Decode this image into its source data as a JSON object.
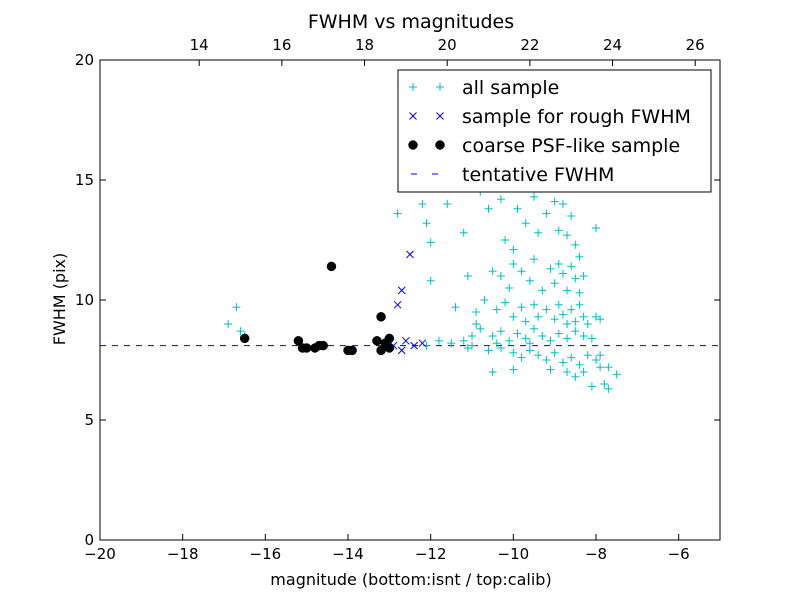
{
  "chart_data": {
    "type": "scatter",
    "title": "FWHM vs magnitudes",
    "xlabel": "magnitude (bottom:isnt / top:calib)",
    "ylabel": "FWHM (pix)",
    "xlim": [
      -20,
      -5
    ],
    "ylim": [
      0,
      20
    ],
    "x_ticks": [
      -20,
      -18,
      -16,
      -14,
      -12,
      -10,
      -8,
      -6
    ],
    "x_tick_labels": [
      "−20",
      "−18",
      "−16",
      "−14",
      "−12",
      "−10",
      "−8",
      "−6"
    ],
    "y_ticks": [
      0,
      5,
      10,
      15,
      20
    ],
    "y_tick_labels": [
      "0",
      "5",
      "10",
      "15",
      "20"
    ],
    "top_axis": {
      "offset": 31.6,
      "ticks": [
        14,
        16,
        18,
        20,
        22,
        24,
        26
      ],
      "tick_labels": [
        "14",
        "16",
        "18",
        "20",
        "22",
        "24",
        "26"
      ]
    },
    "grid": false,
    "legend": {
      "placement": "top-right",
      "entries": [
        {
          "label": "all sample",
          "marker": "+",
          "color": "#00bfbf"
        },
        {
          "label": "sample for rough FWHM",
          "marker": "x",
          "color": "#0000ff"
        },
        {
          "label": "coarse PSF-like sample",
          "marker": "o",
          "color": "#000000"
        },
        {
          "label": "tentative FWHM",
          "marker": "dash",
          "color": "#0000ff"
        }
      ]
    },
    "tentative_fwhm": 8.1,
    "series": [
      {
        "name": "all sample",
        "marker": "+",
        "color": "#00bfbf",
        "points": [
          [
            -16.9,
            9.0
          ],
          [
            -16.7,
            9.7
          ],
          [
            -16.6,
            8.7
          ],
          [
            -16.5,
            8.5
          ],
          [
            -12.8,
            13.6
          ],
          [
            -12.2,
            14.0
          ],
          [
            -12.0,
            12.4
          ],
          [
            -12.1,
            13.2
          ],
          [
            -12.0,
            10.8
          ],
          [
            -11.6,
            14.0
          ],
          [
            -11.2,
            12.8
          ],
          [
            -11.4,
            9.7
          ],
          [
            -11.1,
            11.0
          ],
          [
            -11.0,
            8.5
          ],
          [
            -10.9,
            9.5
          ],
          [
            -11.8,
            8.3
          ],
          [
            -12.1,
            8.1
          ],
          [
            -11.5,
            8.2
          ],
          [
            -11.2,
            8.3
          ],
          [
            -10.8,
            14.5
          ],
          [
            -10.6,
            13.8
          ],
          [
            -10.5,
            15.0
          ],
          [
            -10.4,
            16.4
          ],
          [
            -10.3,
            14.2
          ],
          [
            -10.2,
            12.5
          ],
          [
            -10.0,
            12.1
          ],
          [
            -9.9,
            13.8
          ],
          [
            -9.7,
            13.2
          ],
          [
            -9.5,
            14.3
          ],
          [
            -9.4,
            12.8
          ],
          [
            -9.3,
            15.4
          ],
          [
            -9.2,
            13.6
          ],
          [
            -9.0,
            14.1
          ],
          [
            -8.9,
            12.9
          ],
          [
            -8.8,
            14.0
          ],
          [
            -8.7,
            12.7
          ],
          [
            -8.6,
            13.5
          ],
          [
            -8.5,
            12.3
          ],
          [
            -8.4,
            11.8
          ],
          [
            -8.3,
            11.0
          ],
          [
            -8.0,
            13.0
          ],
          [
            -10.5,
            11.2
          ],
          [
            -10.3,
            11.0
          ],
          [
            -10.1,
            10.5
          ],
          [
            -10.0,
            11.5
          ],
          [
            -9.8,
            11.2
          ],
          [
            -9.6,
            10.8
          ],
          [
            -9.5,
            11.7
          ],
          [
            -9.3,
            10.4
          ],
          [
            -9.1,
            11.3
          ],
          [
            -9.0,
            10.7
          ],
          [
            -8.9,
            11.5
          ],
          [
            -8.8,
            11.1
          ],
          [
            -8.7,
            10.4
          ],
          [
            -8.6,
            11.4
          ],
          [
            -8.5,
            10.9
          ],
          [
            -8.4,
            10.3
          ],
          [
            -10.7,
            10.0
          ],
          [
            -10.4,
            9.6
          ],
          [
            -10.2,
            9.9
          ],
          [
            -10.0,
            9.3
          ],
          [
            -9.8,
            9.7
          ],
          [
            -9.7,
            9.1
          ],
          [
            -9.5,
            9.8
          ],
          [
            -9.4,
            9.3
          ],
          [
            -9.2,
            9.6
          ],
          [
            -9.0,
            9.2
          ],
          [
            -8.9,
            9.8
          ],
          [
            -8.8,
            9.4
          ],
          [
            -8.7,
            9.0
          ],
          [
            -8.6,
            9.6
          ],
          [
            -8.5,
            9.1
          ],
          [
            -8.4,
            9.8
          ],
          [
            -8.3,
            9.3
          ],
          [
            -8.2,
            9.0
          ],
          [
            -8.0,
            9.3
          ],
          [
            -7.9,
            9.2
          ],
          [
            -10.8,
            8.8
          ],
          [
            -10.5,
            8.5
          ],
          [
            -10.3,
            8.7
          ],
          [
            -10.1,
            8.3
          ],
          [
            -9.9,
            8.6
          ],
          [
            -9.7,
            8.4
          ],
          [
            -9.5,
            8.8
          ],
          [
            -9.3,
            8.5
          ],
          [
            -9.1,
            8.3
          ],
          [
            -8.9,
            8.6
          ],
          [
            -8.7,
            8.4
          ],
          [
            -8.5,
            8.7
          ],
          [
            -8.3,
            8.5
          ],
          [
            -8.1,
            8.4
          ],
          [
            -11.0,
            8.1
          ],
          [
            -10.6,
            7.9
          ],
          [
            -10.3,
            8.0
          ],
          [
            -10.0,
            7.8
          ],
          [
            -9.8,
            7.6
          ],
          [
            -9.6,
            7.9
          ],
          [
            -9.4,
            7.7
          ],
          [
            -9.2,
            7.5
          ],
          [
            -9.0,
            7.8
          ],
          [
            -8.8,
            7.4
          ],
          [
            -8.6,
            7.6
          ],
          [
            -8.4,
            7.3
          ],
          [
            -8.2,
            7.7
          ],
          [
            -8.0,
            7.5
          ],
          [
            -7.9,
            7.2
          ],
          [
            -7.8,
            6.5
          ],
          [
            -7.7,
            7.2
          ],
          [
            -7.5,
            6.9
          ],
          [
            -7.7,
            6.3
          ],
          [
            -8.1,
            6.4
          ],
          [
            -8.5,
            6.8
          ],
          [
            -8.7,
            7.0
          ],
          [
            -9.1,
            7.1
          ],
          [
            -10.0,
            7.1
          ],
          [
            -10.5,
            7.0
          ],
          [
            -8.3,
            7.0
          ],
          [
            -7.9,
            7.7
          ],
          [
            -9.6,
            8.2
          ],
          [
            -10.9,
            9.0
          ],
          [
            -11.1,
            8.0
          ],
          [
            -10.4,
            8.2
          ]
        ]
      },
      {
        "name": "sample for rough FWHM",
        "marker": "x",
        "color": "#0000ff",
        "points": [
          [
            -12.5,
            11.9
          ],
          [
            -12.7,
            10.4
          ],
          [
            -12.8,
            9.8
          ],
          [
            -12.2,
            8.2
          ],
          [
            -12.4,
            8.1
          ],
          [
            -12.6,
            8.3
          ],
          [
            -12.7,
            7.9
          ],
          [
            -12.9,
            8.1
          ],
          [
            -13.0,
            8.2
          ]
        ]
      },
      {
        "name": "coarse PSF-like sample",
        "marker": "o",
        "color": "#000000",
        "points": [
          [
            -16.5,
            8.4
          ],
          [
            -15.2,
            8.3
          ],
          [
            -15.1,
            8.0
          ],
          [
            -15.0,
            8.0
          ],
          [
            -14.8,
            8.0
          ],
          [
            -14.7,
            8.1
          ],
          [
            -14.6,
            8.1
          ],
          [
            -14.4,
            11.4
          ],
          [
            -14.0,
            7.9
          ],
          [
            -13.9,
            7.9
          ],
          [
            -13.3,
            8.3
          ],
          [
            -13.2,
            9.3
          ],
          [
            -13.2,
            7.9
          ],
          [
            -13.1,
            8.2
          ],
          [
            -13.0,
            8.4
          ],
          [
            -13.0,
            8.0
          ]
        ]
      }
    ]
  }
}
